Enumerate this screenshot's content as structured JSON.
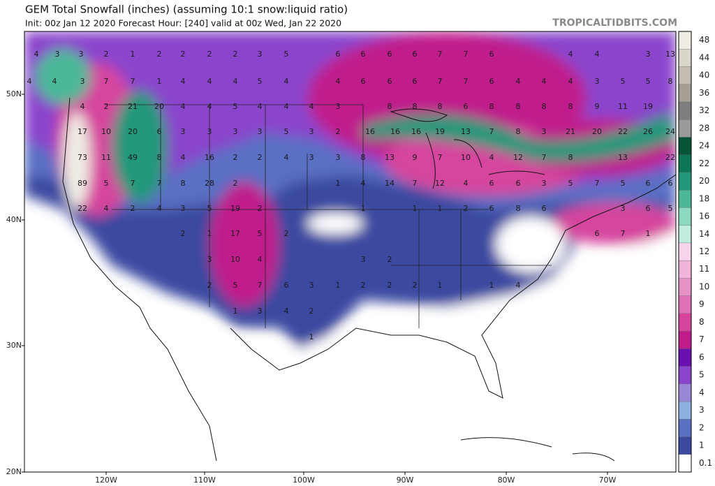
{
  "header": {
    "title": "GEM Total Snowfall (inches) (assuming 10:1 snow:liquid ratio)",
    "subtitle": "Init: 00z Jan 12 2020   Forecast Hour: [240]   valid at 00z Wed, Jan 22 2020",
    "brand": "TROPICALTIDBITS.COM"
  },
  "lat_labels": [
    "50N",
    "40N",
    "30N",
    "20N"
  ],
  "lon_labels": [
    "120W",
    "110W",
    "100W",
    "90W",
    "80W",
    "70W"
  ],
  "colorbar": {
    "levels": [
      0.1,
      1,
      2,
      3,
      4,
      5,
      6,
      7,
      8,
      9,
      10,
      11,
      12,
      14,
      16,
      18,
      20,
      22,
      24,
      28,
      32,
      36,
      40,
      44,
      48
    ],
    "colors": [
      "#ffffff",
      "#3b4aa0",
      "#5a70c4",
      "#8cb0e0",
      "#9a86d6",
      "#8a44cc",
      "#6a10b0",
      "#c01c8c",
      "#d6449e",
      "#e070b6",
      "#e692c6",
      "#efb4d8",
      "#f8d4ea",
      "#c0ece0",
      "#8cd8c0",
      "#4cb898",
      "#22987a",
      "#0c7656",
      "#075436",
      "#9a9a9a",
      "#7e7e7e",
      "#a49e94",
      "#c2bcb2",
      "#dad6cc",
      "#efece4"
    ]
  },
  "spot_values": [
    [
      4,
      3,
      3,
      2,
      1,
      2,
      2,
      2,
      2,
      3,
      5,
      6,
      6,
      6,
      6,
      7,
      7,
      6,
      4,
      4,
      3,
      13
    ],
    [
      4,
      4,
      3,
      7,
      7,
      1,
      4,
      4,
      4,
      5,
      4,
      4,
      6,
      6,
      6,
      7,
      7,
      6,
      4,
      4,
      4,
      3,
      5,
      5,
      8
    ],
    [
      4,
      2,
      21,
      20,
      4,
      4,
      5,
      4,
      4,
      4,
      3,
      8,
      8,
      8,
      6,
      8,
      8,
      8,
      8,
      9,
      11,
      19
    ],
    [
      17,
      10,
      20,
      6,
      3,
      3,
      3,
      3,
      5,
      3,
      2,
      16,
      16,
      16,
      19,
      13,
      7,
      8,
      3,
      21,
      20,
      22,
      26,
      24
    ],
    [
      73,
      11,
      49,
      8,
      4,
      16,
      2,
      2,
      4,
      3,
      3,
      8,
      13,
      9,
      7,
      10,
      4,
      12,
      7,
      8,
      13,
      22
    ],
    [
      89,
      5,
      7,
      7,
      8,
      28,
      2,
      1,
      4,
      14,
      7,
      12,
      4,
      6,
      6,
      3,
      5,
      7,
      5,
      6,
      6
    ],
    [
      22,
      4,
      2,
      4,
      3,
      5,
      19,
      2,
      1,
      1,
      1,
      2,
      6,
      8,
      6,
      3,
      6,
      5
    ],
    [
      2,
      1,
      17,
      5,
      2,
      6,
      7,
      1
    ],
    [
      3,
      10,
      4,
      3,
      2
    ],
    [
      2,
      5,
      7,
      6,
      3,
      1,
      2,
      2,
      2,
      1,
      1,
      4
    ],
    [
      1,
      3,
      4,
      2
    ],
    [
      1
    ]
  ]
}
